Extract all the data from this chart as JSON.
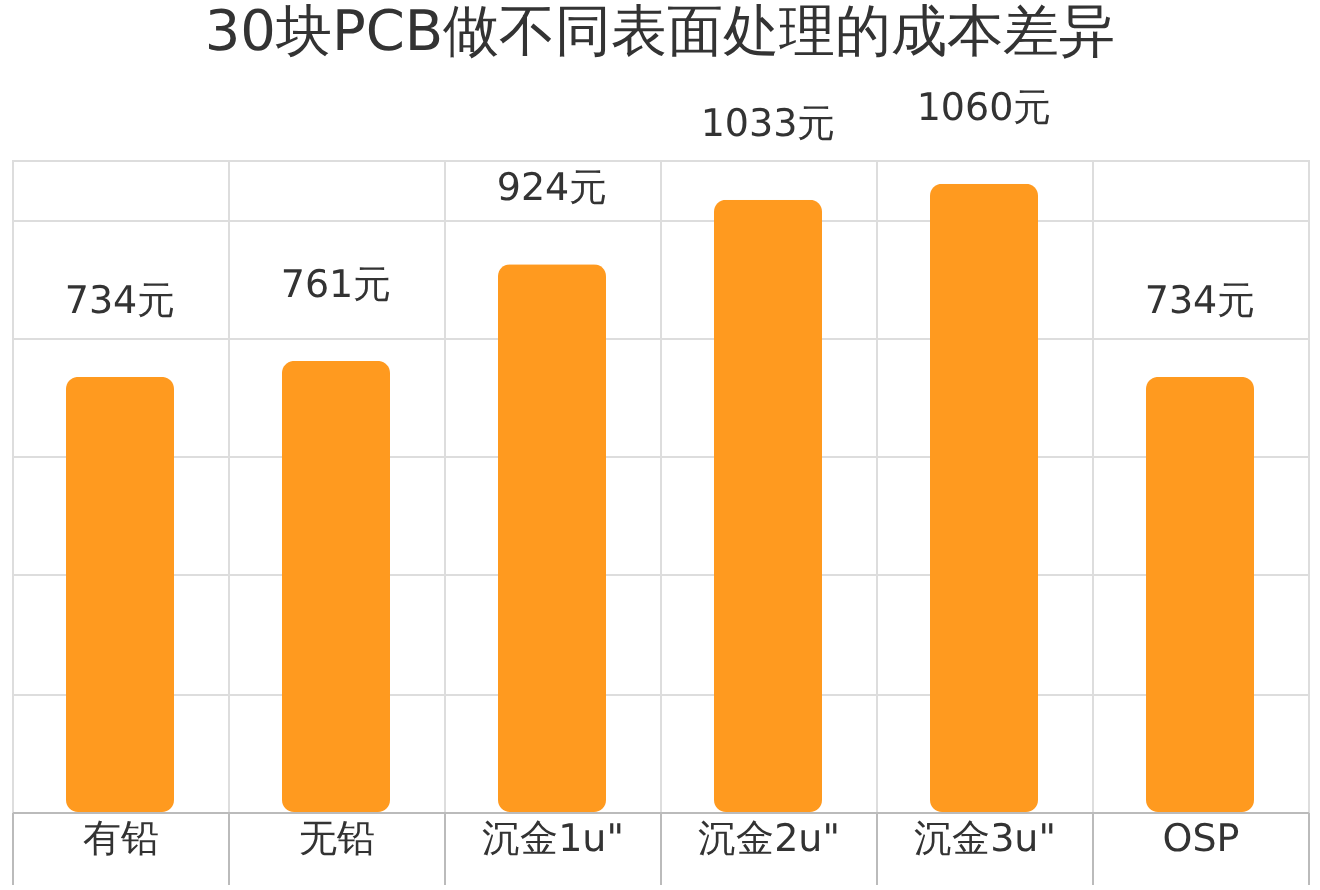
{
  "chart_data": {
    "type": "bar",
    "title": "30块PCB做不同表面处理的成本差异",
    "categories": [
      "有铅",
      "无铅",
      "沉金1u\"",
      "沉金2u\"",
      "沉金3u\"",
      "OSP"
    ],
    "values": [
      734,
      761,
      924,
      1033,
      1060,
      734
    ],
    "value_labels": [
      "734元",
      "761元",
      "924元",
      "1033元",
      "1060元",
      "734元"
    ],
    "color": "#ff9a1f",
    "grid": true,
    "tick_labels": "x"
  }
}
